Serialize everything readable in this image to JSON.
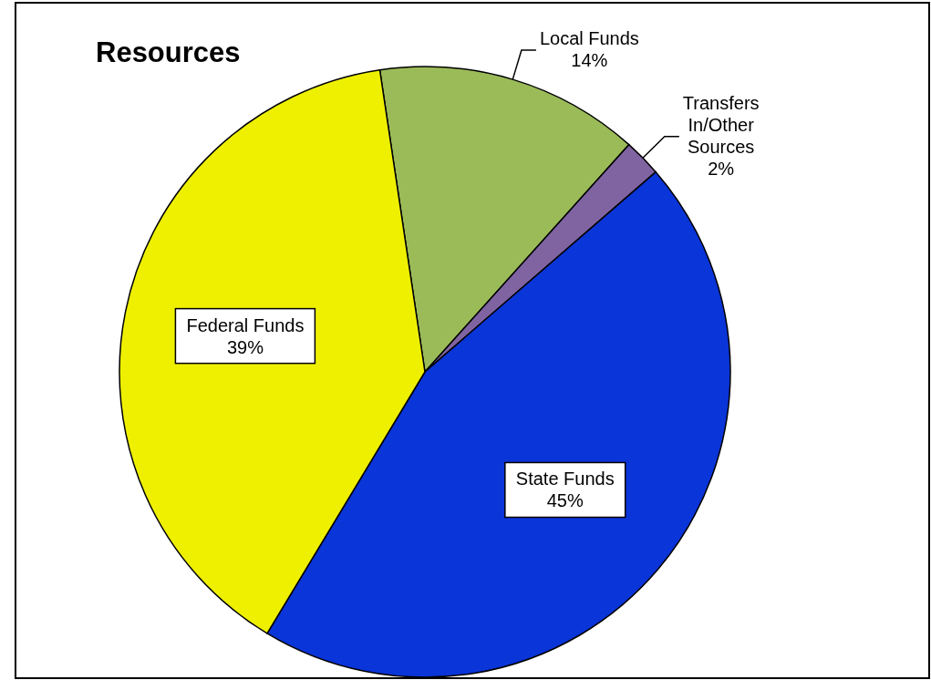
{
  "chart_data": {
    "type": "pie",
    "title": "Resources",
    "categories": [
      "Local Funds",
      "Transfers In/Other Sources",
      "State Funds",
      "Federal Funds"
    ],
    "values": [
      14,
      2,
      45,
      39
    ],
    "value_labels": [
      "14%",
      "2%",
      "45%",
      "39%"
    ],
    "colors": [
      "#9bbb59",
      "#8064a2",
      "#0a35d8",
      "#eef000"
    ]
  }
}
